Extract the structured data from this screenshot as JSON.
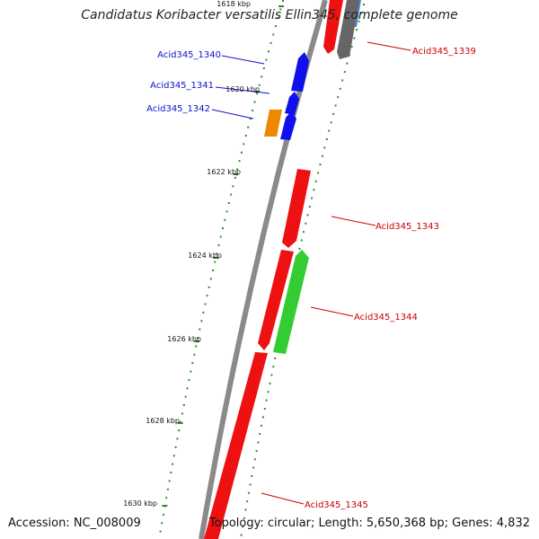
{
  "title": "Candidatus Koribacter versatilis Ellin345, complete genome",
  "footer": {
    "accession": "Accession: NC_008009",
    "summary": "Topology: circular; Length: 5,650,368 bp; Genes: 4,832"
  },
  "colors": {
    "backbone": "#8a8a8a",
    "tick_dot": "#2f8a2f",
    "label_blue": "#1010cc",
    "label_red": "#cc0000"
  },
  "ticks": [
    {
      "label": "1618 kbp"
    },
    {
      "label": "1620 kbp"
    },
    {
      "label": "1622 kbp"
    },
    {
      "label": "1624 kbp"
    },
    {
      "label": "1626 kbp"
    },
    {
      "label": "1628 kbp"
    },
    {
      "label": "1630 kbp"
    }
  ],
  "genes": [
    {
      "name": "Acid345_1339",
      "strand": "reverse",
      "color": "#ee1111",
      "label_color": "#cc0000"
    },
    {
      "name": "Acid345_1340",
      "strand": "forward",
      "color": "#1010ee",
      "label_color": "#1010cc"
    },
    {
      "name": "Acid345_1341",
      "strand": "forward",
      "color": "#1010ee",
      "label_color": "#1010cc"
    },
    {
      "name": "Acid345_1342",
      "strand": "forward",
      "color": "#1010ee",
      "label_color": "#1010cc"
    },
    {
      "name": "Acid345_1343",
      "strand": "reverse",
      "color": "#ee1111",
      "label_color": "#cc0000"
    },
    {
      "name": "Acid345_1344",
      "strand": "forward",
      "color": "#33cc33",
      "label_color": "#cc0000"
    },
    {
      "name": "Acid345_1345",
      "strand": "reverse",
      "color": "#ee1111",
      "label_color": "#cc0000"
    }
  ],
  "other_features": [
    {
      "name": "orange-feature",
      "color": "#ee8800"
    },
    {
      "name": "gray-feature",
      "color": "#666666"
    },
    {
      "name": "lightblue-feature",
      "color": "#4488cc"
    }
  ]
}
